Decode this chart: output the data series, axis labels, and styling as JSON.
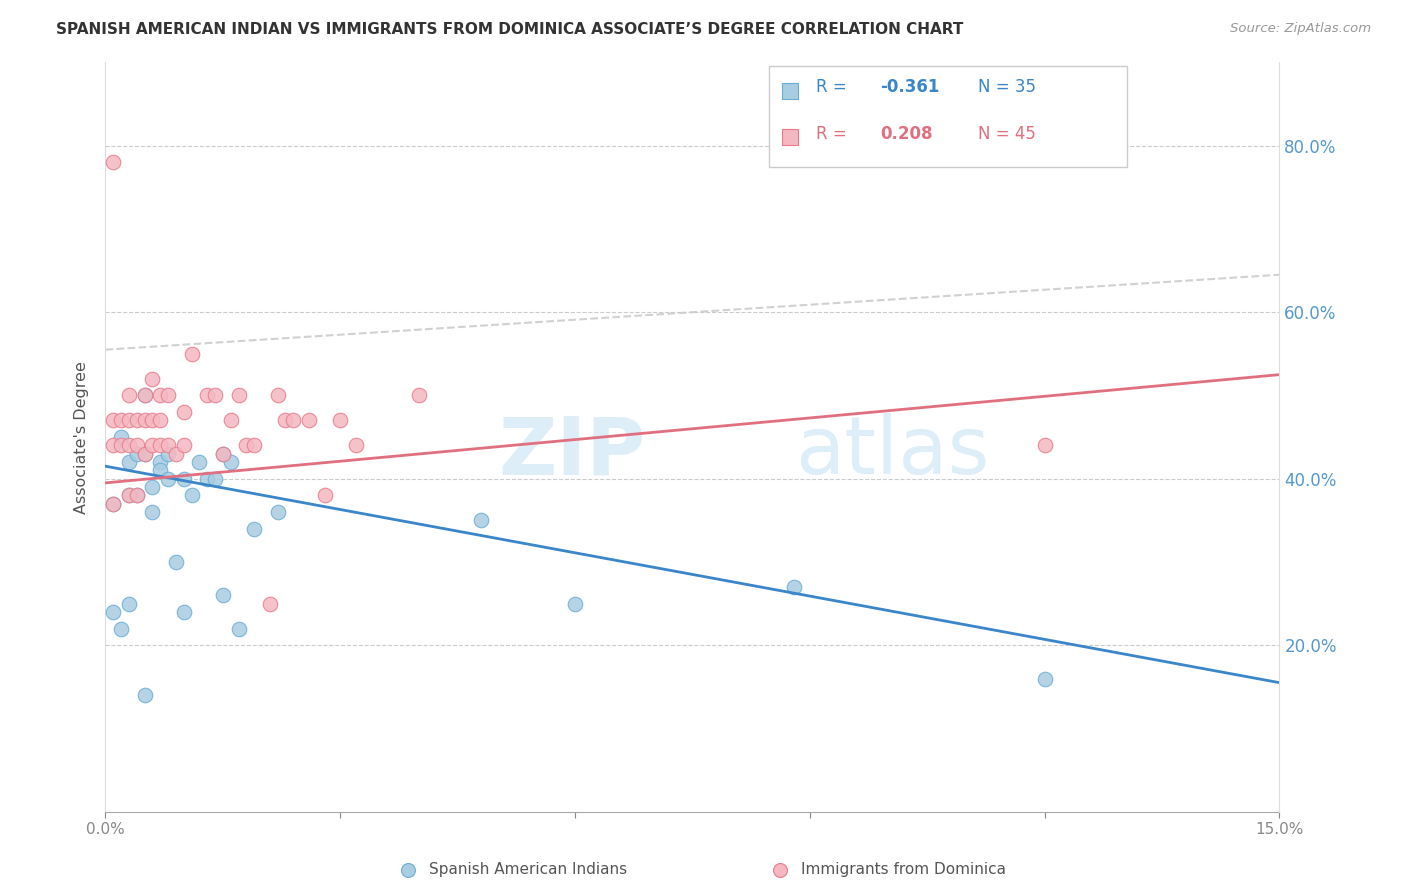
{
  "title": "SPANISH AMERICAN INDIAN VS IMMIGRANTS FROM DOMINICA ASSOCIATE’S DEGREE CORRELATION CHART",
  "source": "Source: ZipAtlas.com",
  "ylabel": "Associate's Degree",
  "y_ticks": [
    0.2,
    0.4,
    0.6,
    0.8
  ],
  "y_tick_labels": [
    "20.0%",
    "40.0%",
    "60.0%",
    "80.0%"
  ],
  "x_range": [
    0.0,
    0.15
  ],
  "y_range": [
    0.0,
    0.9
  ],
  "legend_r1": "R = -0.361",
  "legend_n1": "N = 35",
  "legend_r2": "R = 0.208",
  "legend_n2": "N = 45",
  "series1_color": "#a8cce0",
  "series1_edge": "#6aaed6",
  "series2_color": "#f4b8c1",
  "series2_edge": "#e87a8a",
  "line1_color": "#3a86c8",
  "line2_color": "#e07080",
  "dashed_line_color": "#cccccc",
  "blue_points_x": [
    0.001,
    0.001,
    0.002,
    0.002,
    0.003,
    0.003,
    0.004,
    0.004,
    0.005,
    0.005,
    0.006,
    0.006,
    0.007,
    0.007,
    0.008,
    0.008,
    0.009,
    0.01,
    0.01,
    0.011,
    0.012,
    0.013,
    0.014,
    0.015,
    0.015,
    0.016,
    0.017,
    0.019,
    0.022,
    0.048,
    0.06,
    0.088,
    0.12,
    0.003,
    0.005
  ],
  "blue_points_y": [
    0.37,
    0.24,
    0.45,
    0.22,
    0.42,
    0.38,
    0.43,
    0.38,
    0.5,
    0.43,
    0.39,
    0.36,
    0.42,
    0.41,
    0.43,
    0.4,
    0.3,
    0.4,
    0.24,
    0.38,
    0.42,
    0.4,
    0.4,
    0.43,
    0.26,
    0.42,
    0.22,
    0.34,
    0.36,
    0.35,
    0.25,
    0.27,
    0.16,
    0.25,
    0.14
  ],
  "pink_points_x": [
    0.001,
    0.001,
    0.001,
    0.001,
    0.002,
    0.002,
    0.003,
    0.003,
    0.003,
    0.003,
    0.004,
    0.004,
    0.004,
    0.005,
    0.005,
    0.005,
    0.006,
    0.006,
    0.006,
    0.007,
    0.007,
    0.007,
    0.008,
    0.008,
    0.009,
    0.01,
    0.01,
    0.011,
    0.013,
    0.014,
    0.015,
    0.016,
    0.017,
    0.018,
    0.019,
    0.021,
    0.022,
    0.023,
    0.024,
    0.026,
    0.028,
    0.03,
    0.032,
    0.04,
    0.12
  ],
  "pink_points_y": [
    0.78,
    0.47,
    0.44,
    0.37,
    0.47,
    0.44,
    0.5,
    0.47,
    0.44,
    0.38,
    0.47,
    0.44,
    0.38,
    0.5,
    0.47,
    0.43,
    0.52,
    0.47,
    0.44,
    0.5,
    0.47,
    0.44,
    0.5,
    0.44,
    0.43,
    0.48,
    0.44,
    0.55,
    0.5,
    0.5,
    0.43,
    0.47,
    0.5,
    0.44,
    0.44,
    0.25,
    0.5,
    0.47,
    0.47,
    0.47,
    0.38,
    0.47,
    0.44,
    0.5,
    0.44
  ],
  "blue_line_x0": 0.0,
  "blue_line_x1": 0.15,
  "blue_line_y0": 0.415,
  "blue_line_y1": 0.155,
  "pink_line_x0": 0.0,
  "pink_line_x1": 0.15,
  "pink_line_y0": 0.395,
  "pink_line_y1": 0.525,
  "dashed_line_x0": 0.0,
  "dashed_line_x1": 0.15,
  "dashed_line_y0": 0.555,
  "dashed_line_y1": 0.645
}
